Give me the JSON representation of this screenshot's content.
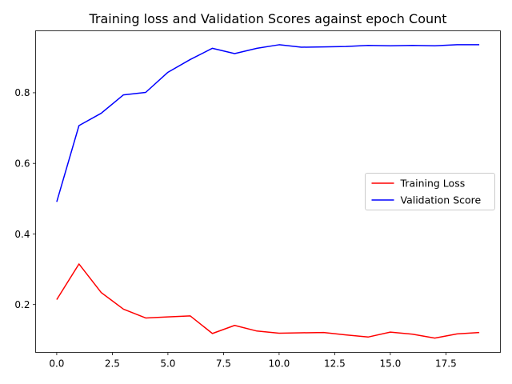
{
  "chart_data": {
    "type": "line",
    "title": "Training loss and Validation Scores against epoch Count",
    "xlabel": "",
    "ylabel": "",
    "xlim": [
      -0.95,
      19.95
    ],
    "ylim": [
      0.0645,
      0.9755
    ],
    "x_ticks": [
      0.0,
      2.5,
      5.0,
      7.5,
      10.0,
      12.5,
      15.0,
      17.5
    ],
    "x_tick_labels": [
      "0.0",
      "2.5",
      "5.0",
      "7.5",
      "10.0",
      "12.5",
      "15.0",
      "17.5"
    ],
    "y_ticks": [
      0.2,
      0.4,
      0.6,
      0.8
    ],
    "y_tick_labels": [
      "0.2",
      "0.4",
      "0.6",
      "0.8"
    ],
    "grid": false,
    "legend": {
      "placement": "center-right"
    },
    "x": [
      0,
      1,
      2,
      3,
      4,
      5,
      6,
      7,
      8,
      9,
      10,
      11,
      12,
      13,
      14,
      15,
      16,
      17,
      18,
      19
    ],
    "series": [
      {
        "name": "Training Loss",
        "color": "#ff0000",
        "values": [
          0.214,
          0.315,
          0.234,
          0.187,
          0.162,
          0.165,
          0.168,
          0.118,
          0.141,
          0.125,
          0.119,
          0.12,
          0.121,
          0.114,
          0.108,
          0.122,
          0.116,
          0.105,
          0.117,
          0.121
        ]
      },
      {
        "name": "Validation Score",
        "color": "#0000ff",
        "values": [
          0.491,
          0.707,
          0.742,
          0.794,
          0.801,
          0.858,
          0.894,
          0.926,
          0.911,
          0.926,
          0.936,
          0.929,
          0.93,
          0.931,
          0.934,
          0.933,
          0.934,
          0.933,
          0.936,
          0.936
        ]
      }
    ]
  }
}
